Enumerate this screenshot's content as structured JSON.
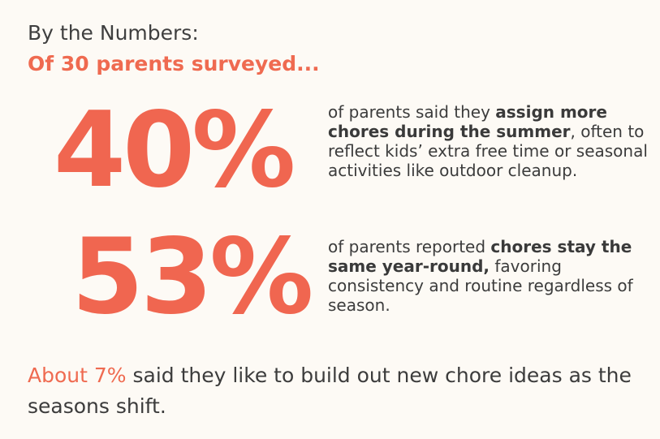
{
  "header": {
    "title": "By the Numbers:",
    "subtitle": "Of 30 parents surveyed..."
  },
  "stats": [
    {
      "value": "40%",
      "desc_pre": "of parents said they ",
      "desc_bold": "assign more chores during the summer",
      "desc_post": ", often to reflect kids’ extra free time or seasonal activities like outdoor cleanup."
    },
    {
      "value": "53%",
      "desc_pre": "of parents reported ",
      "desc_bold": "chores stay the same year-round,",
      "desc_post": " favoring consistency and routine regardless of season."
    }
  ],
  "footer": {
    "highlight": "About 7%",
    "text": " said they like to build out new chore ideas as the seasons shift."
  },
  "colors": {
    "accent": "#f06650",
    "text": "#3f3f3f",
    "background": "#fdfaf5"
  }
}
